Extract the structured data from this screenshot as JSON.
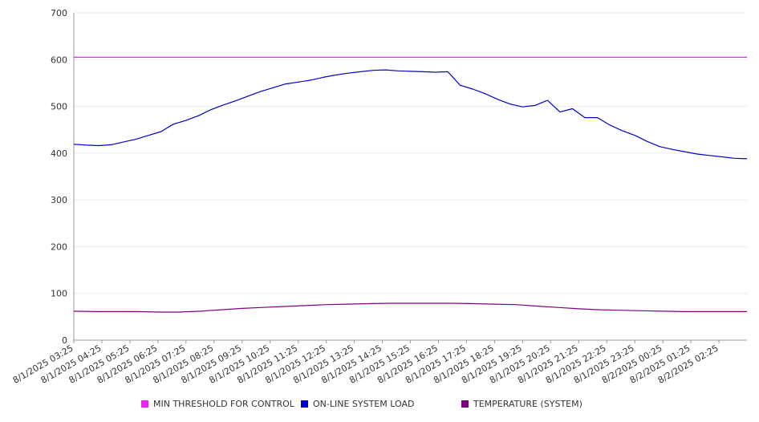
{
  "chart_data": {
    "type": "line",
    "y_ticks": [
      "0",
      "100",
      "200",
      "300",
      "400",
      "500",
      "600",
      "700"
    ],
    "ylim": [
      0,
      700
    ],
    "x_ticks": [
      "8/1/2025 03:25",
      "8/1/2025 04:25",
      "8/1/2025 05:25",
      "8/1/2025 06:25",
      "8/1/2025 07:25",
      "8/1/2025 08:25",
      "8/1/2025 09:25",
      "8/1/2025 10:25",
      "8/1/2025 11:25",
      "8/1/2025 12:25",
      "8/1/2025 13:25",
      "8/1/2025 14:25",
      "8/1/2025 15:25",
      "8/1/2025 16:25",
      "8/1/2025 17:25",
      "8/1/2025 18:25",
      "8/1/2025 19:25",
      "8/1/2025 20:25",
      "8/1/2025 21:25",
      "8/1/2025 22:25",
      "8/1/2025 23:25",
      "8/2/2025 00:25",
      "8/2/2025 01:25",
      "8/2/2025 02:25"
    ],
    "x_start": "8/1/2025 03:25",
    "x_end": "8/2/2025 03:25",
    "grid": true,
    "legend_position": "bottom",
    "series": [
      {
        "name": "MIN THRESHOLD FOR CONTROL",
        "color": "#ee22ee",
        "values": [
          605,
          605
        ]
      },
      {
        "name": "ON-LINE SYSTEM LOAD",
        "color": "#0000cc",
        "values": [
          419,
          417,
          416,
          418,
          424,
          430,
          438,
          446,
          462,
          470,
          480,
          493,
          503,
          512,
          522,
          532,
          540,
          548,
          552,
          556,
          562,
          567,
          571,
          574,
          577,
          578,
          576,
          575,
          574,
          573,
          574,
          545,
          537,
          527,
          515,
          505,
          499,
          502,
          513,
          488,
          495,
          476,
          476,
          460,
          448,
          438,
          425,
          414,
          408,
          403,
          398,
          395,
          392,
          389,
          388
        ]
      },
      {
        "name": "TEMPERATURE (SYSTEM)",
        "color": "#800080",
        "values": [
          62,
          61,
          61,
          61,
          60,
          60,
          62,
          65,
          68,
          70,
          72,
          74,
          76,
          77,
          78,
          79,
          79,
          79,
          79,
          78,
          77,
          76,
          73,
          70,
          67,
          65,
          64,
          63,
          62,
          61,
          61,
          61,
          61
        ]
      }
    ]
  }
}
